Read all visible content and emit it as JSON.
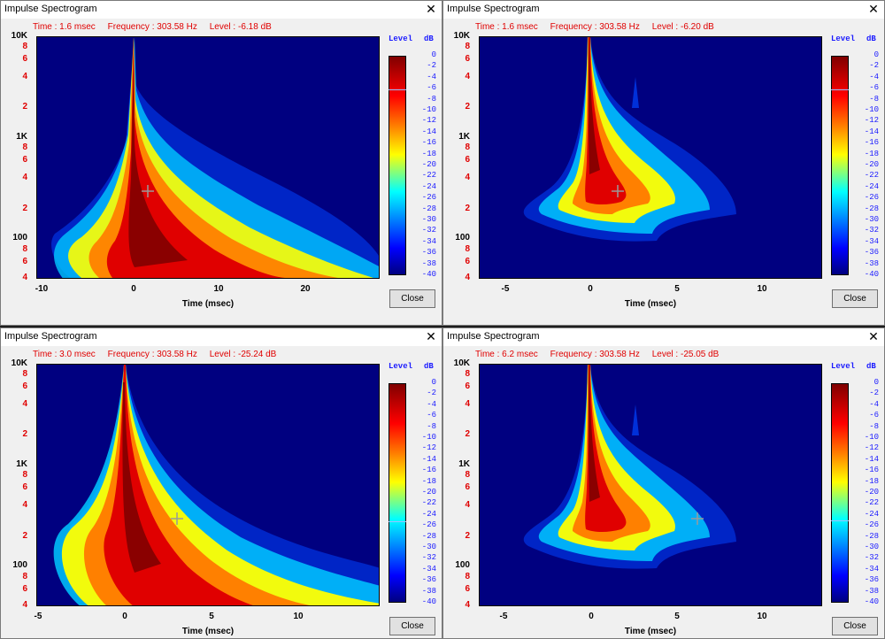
{
  "windows": [
    {
      "title": "Impulse Spectrogram",
      "info": {
        "time": "Time : 1.6 msec",
        "frequency": "Frequency : 303.58 Hz",
        "level": "Level : -6.18 dB"
      },
      "x_ticks": [
        "-10",
        "0",
        "10",
        "20"
      ],
      "x_label": "Time (msec)",
      "close_label": "Close",
      "level_marker_db": -6.18
    },
    {
      "title": "Impulse Spectrogram",
      "info": {
        "time": "Time : 1.6 msec",
        "frequency": "Frequency : 303.58 Hz",
        "level": "Level : -6.20 dB"
      },
      "x_ticks": [
        "-5",
        "0",
        "5",
        "10"
      ],
      "x_label": "Time (msec)",
      "close_label": "Close",
      "level_marker_db": -6.2
    },
    {
      "title": "Impulse Spectrogram",
      "info": {
        "time": "Time : 3.0 msec",
        "frequency": "Frequency : 303.58 Hz",
        "level": "Level : -25.24 dB"
      },
      "x_ticks": [
        "-5",
        "0",
        "5",
        "10"
      ],
      "x_label": "Time (msec)",
      "close_label": "Close",
      "level_marker_db": -25.24
    },
    {
      "title": "Impulse Spectrogram",
      "info": {
        "time": "Time : 6.2 msec",
        "frequency": "Frequency : 303.58 Hz",
        "level": "Level : -25.05 dB"
      },
      "x_ticks": [
        "-5",
        "0",
        "5",
        "10"
      ],
      "x_label": "Time (msec)",
      "close_label": "Close",
      "level_marker_db": -25.05
    }
  ],
  "y_ticks": [
    "10K",
    "8",
    "6",
    "4",
    "2",
    "1K",
    "8",
    "6",
    "4",
    "2",
    "100",
    "8",
    "6",
    "4"
  ],
  "colorbar": {
    "title": "Level",
    "unit": "dB",
    "ticks": [
      "0",
      "-2",
      "-4",
      "-6",
      "-8",
      "-10",
      "-12",
      "-14",
      "-16",
      "-18",
      "-20",
      "-22",
      "-24",
      "-26",
      "-28",
      "-30",
      "-32",
      "-34",
      "-36",
      "-38",
      "-40"
    ]
  },
  "close_icon": "close-icon",
  "crosshair_icon": "crosshair-icon"
}
